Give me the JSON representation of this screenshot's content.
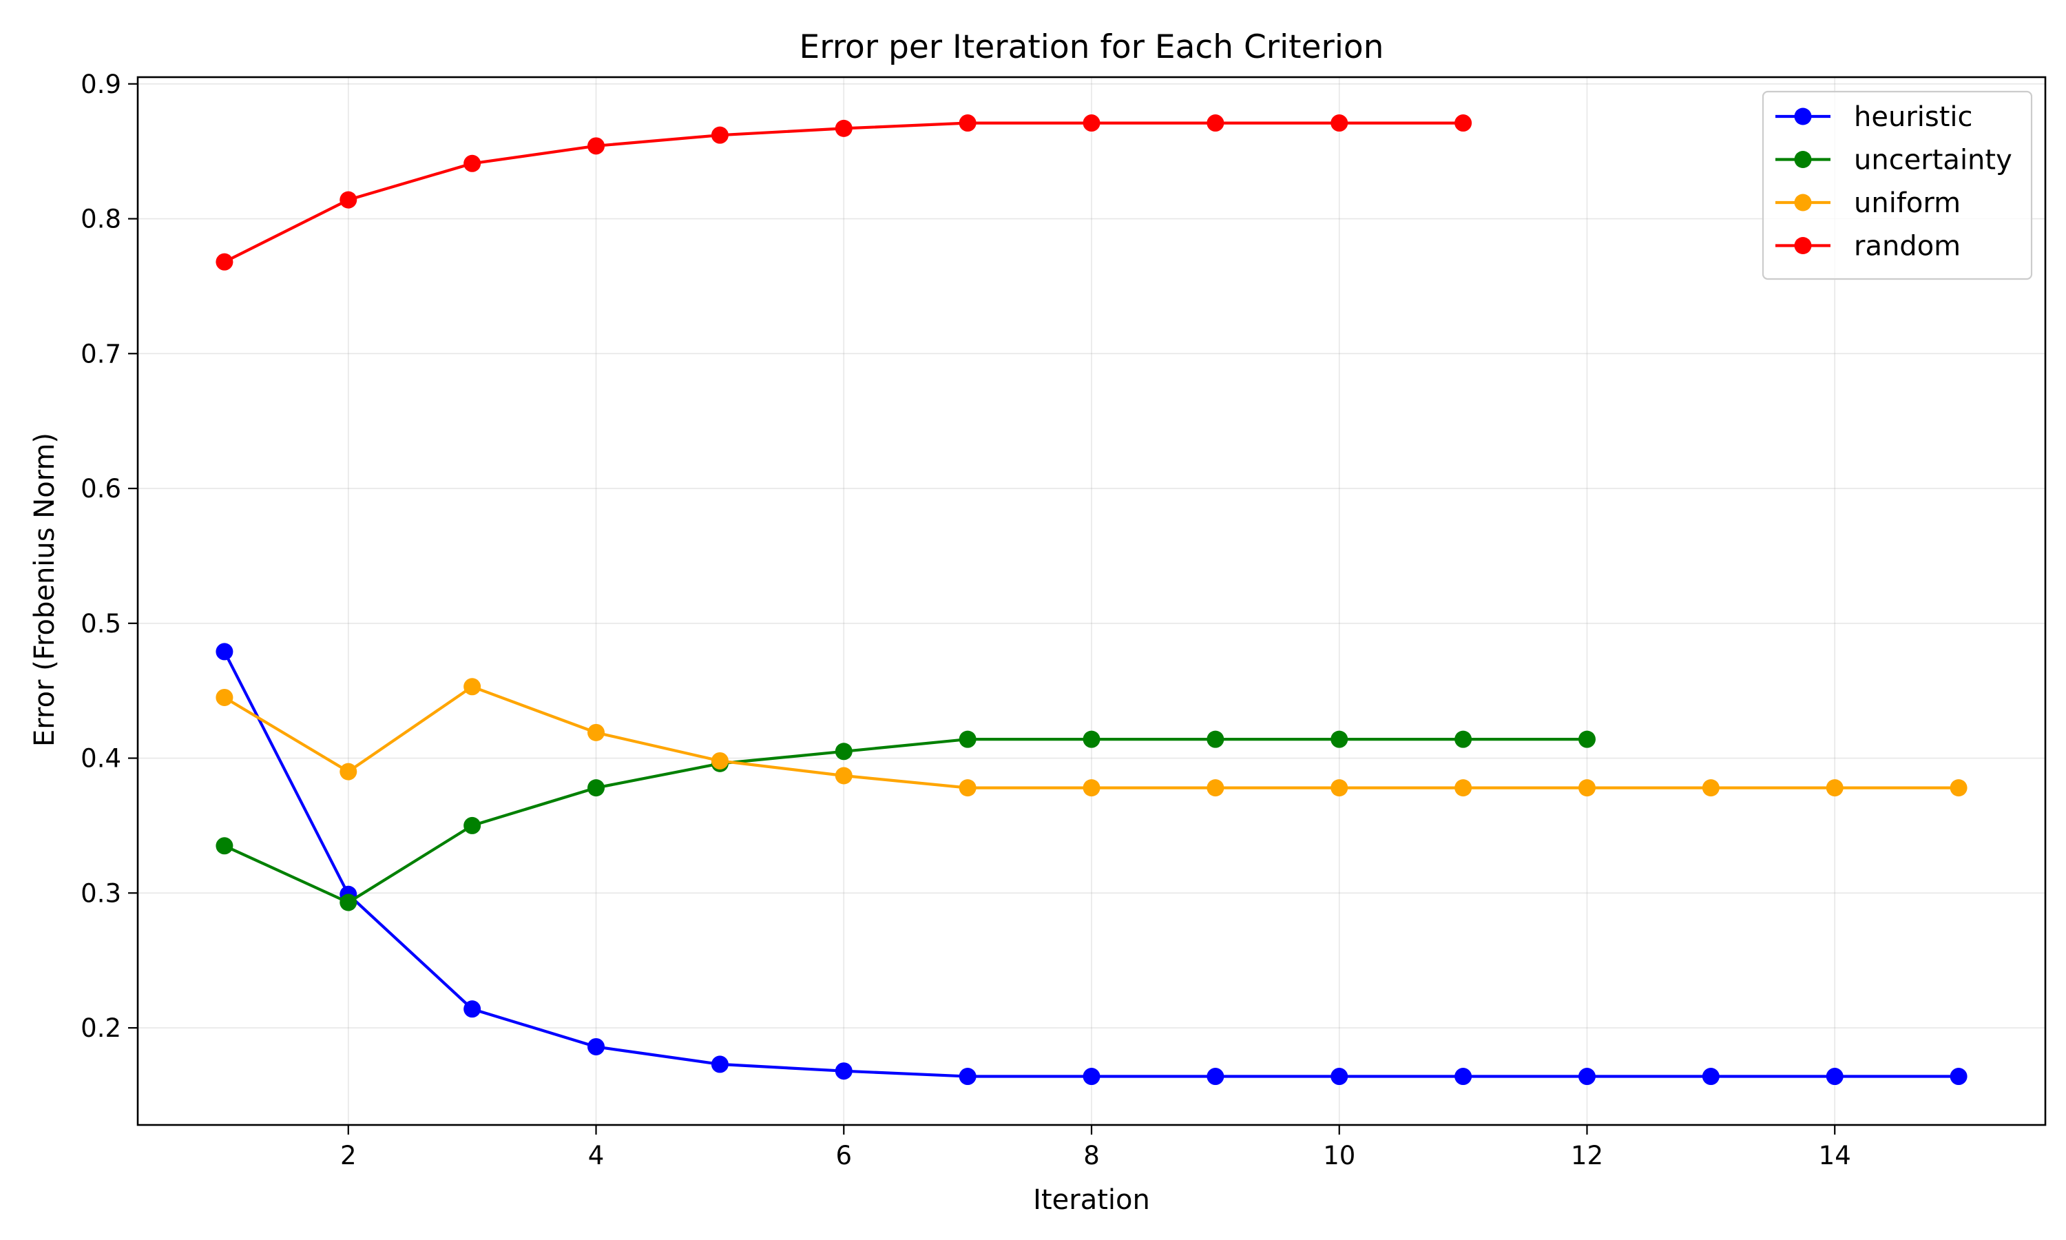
{
  "chart_data": {
    "type": "line",
    "title": "Error per Iteration for Each Criterion",
    "xlabel": "Iteration",
    "ylabel": "Error (Frobenius Norm)",
    "xlim": [
      0.3,
      15.7
    ],
    "ylim": [
      0.128,
      0.905
    ],
    "xticks": [
      2,
      4,
      6,
      8,
      10,
      12,
      14
    ],
    "yticks": [
      0.2,
      0.3,
      0.4,
      0.5,
      0.6,
      0.7,
      0.8,
      0.9
    ],
    "grid": true,
    "legend_position": "top-right",
    "series": [
      {
        "name": "heuristic",
        "color": "#0000ff",
        "x": [
          1,
          2,
          3,
          4,
          5,
          6,
          7,
          8,
          9,
          10,
          11,
          12,
          13,
          14,
          15
        ],
        "values": [
          0.479,
          0.299,
          0.214,
          0.186,
          0.173,
          0.168,
          0.164,
          0.164,
          0.164,
          0.164,
          0.164,
          0.164,
          0.164,
          0.164,
          0.164
        ]
      },
      {
        "name": "uncertainty",
        "color": "#008000",
        "x": [
          1,
          2,
          3,
          4,
          5,
          6,
          7,
          8,
          9,
          10,
          11,
          12
        ],
        "values": [
          0.335,
          0.293,
          0.35,
          0.378,
          0.396,
          0.405,
          0.414,
          0.414,
          0.414,
          0.414,
          0.414,
          0.414
        ]
      },
      {
        "name": "uniform",
        "color": "#ffa500",
        "x": [
          1,
          2,
          3,
          4,
          5,
          6,
          7,
          8,
          9,
          10,
          11,
          12,
          13,
          14,
          15
        ],
        "values": [
          0.445,
          0.39,
          0.453,
          0.419,
          0.398,
          0.387,
          0.378,
          0.378,
          0.378,
          0.378,
          0.378,
          0.378,
          0.378,
          0.378,
          0.378
        ]
      },
      {
        "name": "random",
        "color": "#ff0000",
        "x": [
          1,
          2,
          3,
          4,
          5,
          6,
          7,
          8,
          9,
          10,
          11
        ],
        "values": [
          0.768,
          0.814,
          0.841,
          0.854,
          0.862,
          0.867,
          0.871,
          0.871,
          0.871,
          0.871,
          0.871
        ]
      }
    ]
  }
}
